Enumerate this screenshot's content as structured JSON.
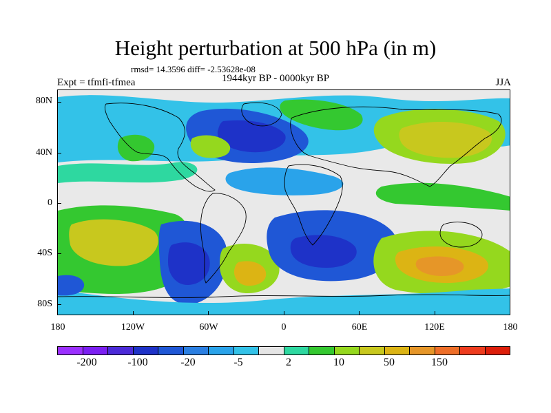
{
  "header": {
    "title": "Height perturbation at 500 hPa (in m)",
    "stats": "rmsd= 14.3596 diff= -2.53628e-08",
    "expt": "Expt = tfmfi-tfmea",
    "period": "1944kyr BP - 0000kyr BP",
    "season": "JJA"
  },
  "axes": {
    "lat_labels": [
      "80N",
      "40N",
      "0",
      "40S",
      "80S"
    ],
    "lon_labels": [
      "180",
      "120W",
      "60W",
      "0",
      "60E",
      "120E",
      "180"
    ]
  },
  "colorbar": {
    "colors": [
      "#9b30ff",
      "#7b1ff2",
      "#4b2ad8",
      "#1e32c8",
      "#1f57d6",
      "#2b7fe2",
      "#2aa3ea",
      "#33c2e8",
      "#e5e5e5",
      "#2ed8a0",
      "#34c830",
      "#95d81e",
      "#c8c81e",
      "#dcb414",
      "#e69628",
      "#ee6e28",
      "#ee3c1e",
      "#dd1e0a"
    ],
    "labels": [
      "-200",
      "-100",
      "-20",
      "-5",
      "2",
      "10",
      "50",
      "150"
    ]
  }
}
